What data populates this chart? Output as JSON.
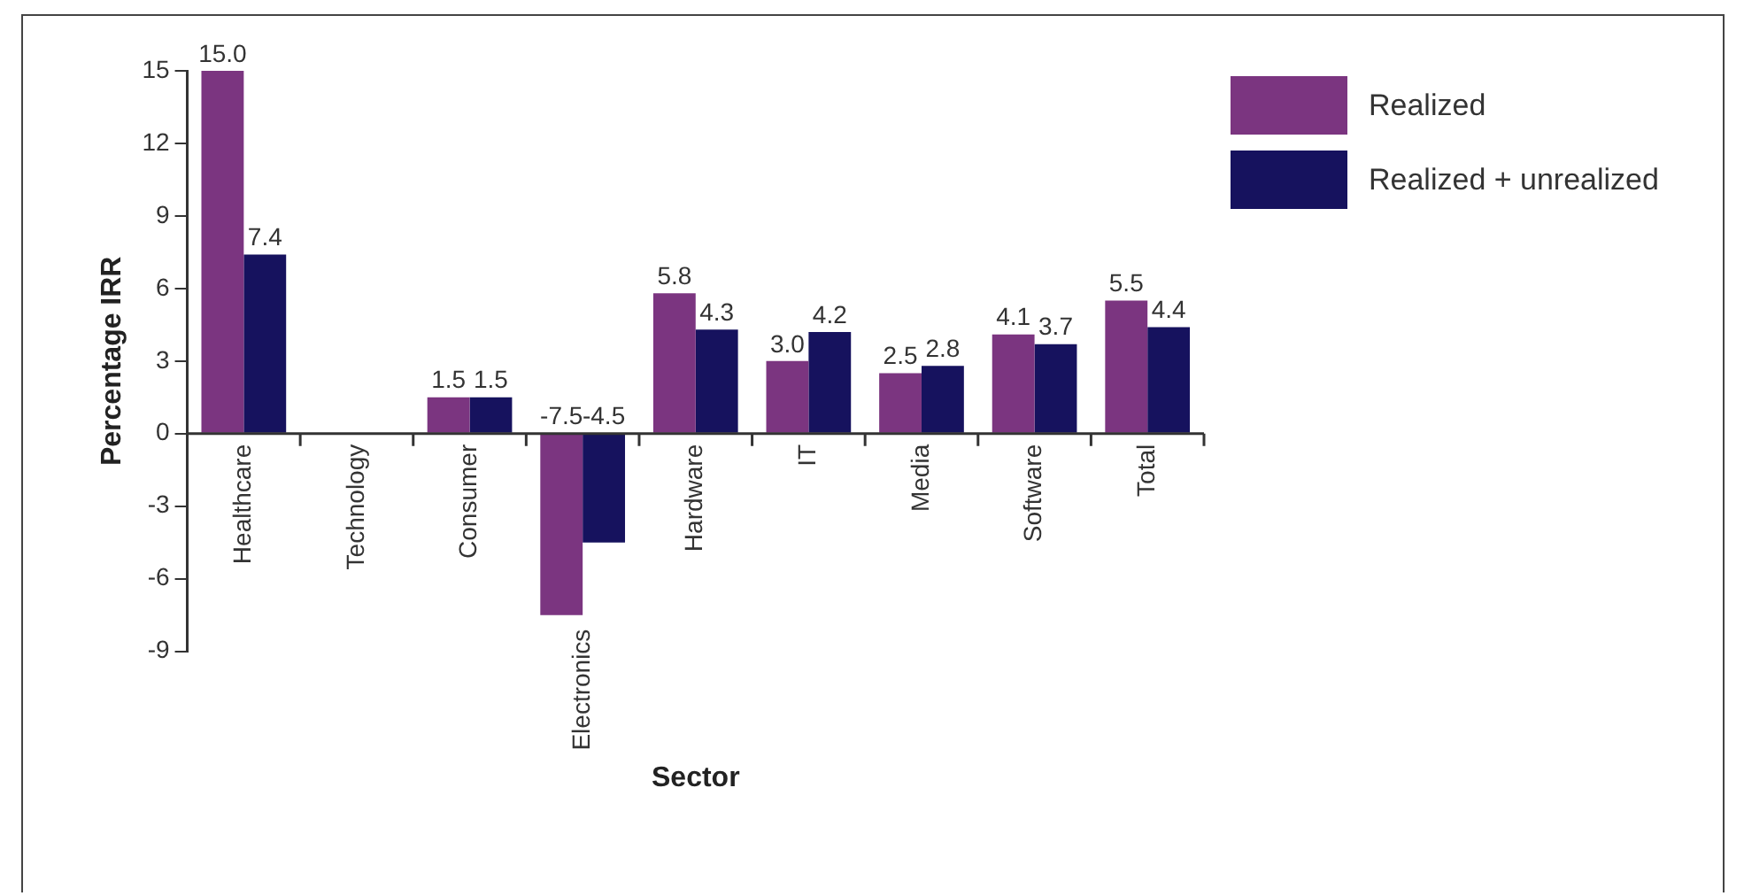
{
  "chart_data": {
    "type": "bar",
    "xlabel": "Sector",
    "ylabel": "Percentage IRR",
    "categories": [
      "Healthcare",
      "Technology",
      "Consumer",
      "Electronics",
      "Hardware",
      "IT",
      "Media",
      "Software",
      "Total"
    ],
    "series": [
      {
        "name": "Realized",
        "color": "#7b3580",
        "values": [
          15.0,
          null,
          1.5,
          -7.5,
          5.8,
          3.0,
          2.5,
          4.1,
          5.5
        ],
        "value_labels": [
          "15.0",
          null,
          "1.5",
          "-7.5",
          "5.8",
          "3.0",
          "2.5",
          "4.1",
          "5.5"
        ]
      },
      {
        "name": "Realized + unrealized",
        "color": "#16125e",
        "values": [
          7.4,
          null,
          1.5,
          -4.5,
          4.3,
          4.2,
          2.8,
          3.7,
          4.4
        ],
        "value_labels": [
          "7.4",
          null,
          "1.5",
          "-4.5",
          "4.3",
          "4.2",
          "2.8",
          "3.7",
          "4.4"
        ]
      }
    ],
    "ylim": [
      -9,
      15
    ],
    "yticks": [
      -9,
      -6,
      -3,
      0,
      3,
      6,
      9,
      12,
      15
    ],
    "grid": false,
    "legend": "top right"
  }
}
